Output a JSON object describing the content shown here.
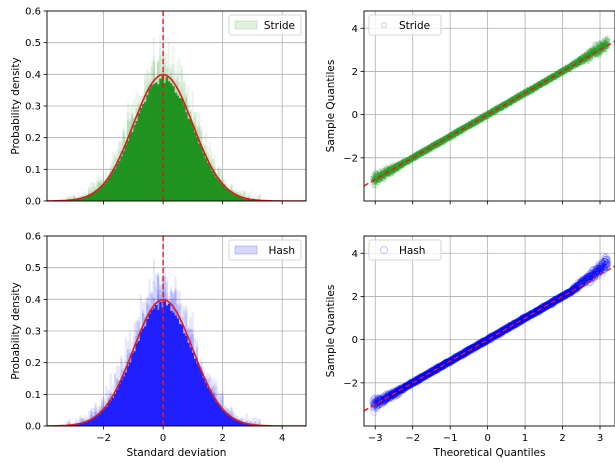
{
  "figure": {
    "panels": [
      {
        "id": "hist-stride",
        "kind": "histogram",
        "legend_label": "Stride",
        "legend_position": "upper right",
        "color": "#2ca02c",
        "fill_color": "#1a8f1a",
        "fit_color": "#e31a1c",
        "xlim": [
          -3.9,
          4.8
        ],
        "ylim": [
          0,
          0.6
        ],
        "xticks": [
          -2,
          0,
          2,
          4
        ],
        "xtick_labels": [
          "",
          "",
          "",
          ""
        ],
        "yticks": [
          0.0,
          0.1,
          0.2,
          0.3,
          0.4,
          0.5,
          0.6
        ],
        "ytick_labels": [
          "0.0",
          "0.1",
          "0.2",
          "0.3",
          "0.4",
          "0.5",
          "0.6"
        ],
        "xlabel": "",
        "ylabel": "Probability density",
        "grid": true
      },
      {
        "id": "qq-stride",
        "kind": "qq",
        "legend_label": "Stride",
        "legend_position": "upper left",
        "color": "#2ca02c",
        "line_color": "#e31a1c",
        "xlim": [
          -3.3,
          3.4
        ],
        "ylim": [
          -4.0,
          4.8
        ],
        "xticks": [
          -3,
          -2,
          -1,
          0,
          1,
          2,
          3
        ],
        "xtick_labels": [
          "",
          "",
          "",
          "",
          "",
          "",
          ""
        ],
        "yticks": [
          -2,
          0,
          2,
          4
        ],
        "ytick_labels": [
          "−2",
          "0",
          "2",
          "4"
        ],
        "xlabel": "",
        "ylabel": "Sample Quantiles",
        "grid": true
      },
      {
        "id": "hist-hash",
        "kind": "histogram",
        "legend_label": "Hash",
        "legend_position": "upper right",
        "color": "#0000ff",
        "fill_color": "#1a1aff",
        "fit_color": "#e31a1c",
        "xlim": [
          -3.9,
          4.8
        ],
        "ylim": [
          0,
          0.6
        ],
        "xticks": [
          -2,
          0,
          2,
          4
        ],
        "xtick_labels": [
          "−2",
          "0",
          "2",
          "4"
        ],
        "yticks": [
          0.0,
          0.1,
          0.2,
          0.3,
          0.4,
          0.5,
          0.6
        ],
        "ytick_labels": [
          "0.0",
          "0.1",
          "0.2",
          "0.3",
          "0.4",
          "0.5",
          "0.6"
        ],
        "xlabel": "Standard deviation",
        "ylabel": "Probability density",
        "grid": true
      },
      {
        "id": "qq-hash",
        "kind": "qq",
        "legend_label": "Hash",
        "legend_position": "upper left",
        "color": "#0000ff",
        "line_color": "#e31a1c",
        "xlim": [
          -3.3,
          3.4
        ],
        "ylim": [
          -4.0,
          4.8
        ],
        "xticks": [
          -3,
          -2,
          -1,
          0,
          1,
          2,
          3
        ],
        "xtick_labels": [
          "−3",
          "−2",
          "−1",
          "0",
          "1",
          "2",
          "3"
        ],
        "yticks": [
          -2,
          0,
          2,
          4
        ],
        "ytick_labels": [
          "−2",
          "0",
          "2",
          "4"
        ],
        "xlabel": "Theoretical Quantiles",
        "ylabel": "Sample Quantiles",
        "grid": true
      }
    ]
  },
  "chart_data": [
    {
      "type": "bar",
      "subtype": "histogram-with-normal-fit",
      "series": [
        {
          "name": "Stride",
          "x": [
            -3.5,
            -3.0,
            -2.5,
            -2.0,
            -1.5,
            -1.0,
            -0.5,
            0.0,
            0.5,
            1.0,
            1.5,
            2.0,
            2.5,
            3.0,
            3.5,
            4.0
          ],
          "values": [
            0.002,
            0.008,
            0.02,
            0.055,
            0.13,
            0.24,
            0.34,
            0.4,
            0.35,
            0.25,
            0.13,
            0.055,
            0.02,
            0.008,
            0.003,
            0.001
          ]
        },
        {
          "name": "normal fit",
          "mean": 0,
          "std": 1,
          "peak": 0.4
        }
      ],
      "vline_x": 0,
      "xlabel": "",
      "ylabel": "Probability density",
      "xlim": [
        -3.9,
        4.8
      ],
      "ylim": [
        0,
        0.6
      ]
    },
    {
      "type": "scatter",
      "subtype": "qq-plot",
      "series": [
        {
          "name": "Stride",
          "x_range": [
            -3.1,
            3.3
          ],
          "y_range": [
            -3.0,
            3.4
          ]
        },
        {
          "name": "reference line",
          "slope": 1,
          "intercept": 0
        }
      ],
      "xlabel": "",
      "ylabel": "Sample Quantiles",
      "xlim": [
        -3.3,
        3.4
      ],
      "ylim": [
        -4.0,
        4.8
      ]
    },
    {
      "type": "bar",
      "subtype": "histogram-with-normal-fit",
      "series": [
        {
          "name": "Hash",
          "x": [
            -3.5,
            -3.0,
            -2.5,
            -2.0,
            -1.5,
            -1.0,
            -0.5,
            0.0,
            0.5,
            1.0,
            1.5,
            2.0,
            2.5,
            3.0,
            3.5,
            4.0
          ],
          "values": [
            0.002,
            0.008,
            0.022,
            0.06,
            0.14,
            0.25,
            0.35,
            0.4,
            0.35,
            0.24,
            0.13,
            0.06,
            0.022,
            0.01,
            0.004,
            0.001
          ]
        },
        {
          "name": "normal fit",
          "mean": 0,
          "std": 1,
          "peak": 0.4
        }
      ],
      "vline_x": 0,
      "xlabel": "Standard deviation",
      "ylabel": "Probability density",
      "xlim": [
        -3.9,
        4.8
      ],
      "ylim": [
        0,
        0.6
      ]
    },
    {
      "type": "scatter",
      "subtype": "qq-plot",
      "series": [
        {
          "name": "Hash",
          "x_range": [
            -3.1,
            3.3
          ],
          "y_range": [
            -3.0,
            3.9
          ]
        },
        {
          "name": "reference line",
          "slope": 1,
          "intercept": 0
        }
      ],
      "xlabel": "Theoretical Quantiles",
      "ylabel": "Sample Quantiles",
      "xlim": [
        -3.3,
        3.4
      ],
      "ylim": [
        -4.0,
        4.8
      ]
    }
  ]
}
